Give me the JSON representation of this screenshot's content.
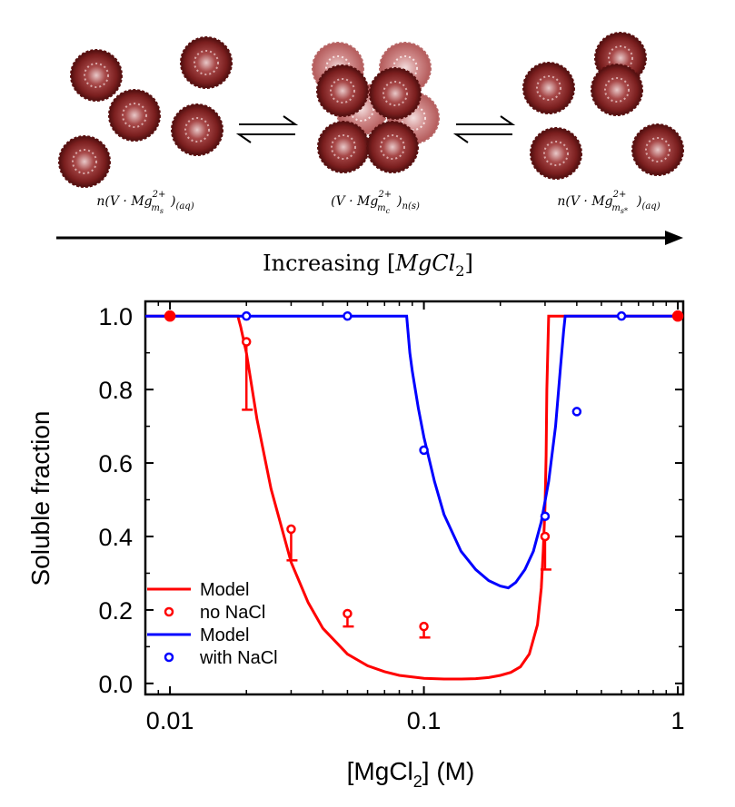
{
  "scheme": {
    "state_labels": {
      "left": {
        "main": "n(V · Mg",
        "sup": "2+",
        "sub": "m",
        "subsub": "s",
        "tail": ")",
        "phase": "(aq)"
      },
      "middle": {
        "main": "(V · Mg",
        "sup": "2+",
        "sub": "m",
        "subsub": "c",
        "tail": ")",
        "phase": "n(s)"
      },
      "right": {
        "main": "n(V · Mg",
        "sup": "2+",
        "sub": "m",
        "subsub": "s*",
        "tail": ")",
        "phase": "(aq)"
      }
    },
    "arrow_label": {
      "text": "Increasing ",
      "bracket_open": "[",
      "species": "MgCl",
      "sub": "2",
      "bracket_close": "]"
    },
    "colors": {
      "particle_dark": "#7a1e1e",
      "particle_light": "#c46a6a"
    }
  },
  "chart_data": {
    "type": "scatter",
    "xscale": "log",
    "xlim": [
      0.008,
      1.05
    ],
    "ylim": [
      -0.03,
      1.04
    ],
    "xticks": [
      0.01,
      0.1,
      1
    ],
    "xtick_labels": [
      "0.01",
      "0.1",
      "1"
    ],
    "yticks": [
      0,
      0.2,
      0.4,
      0.6,
      0.8,
      1.0
    ],
    "ytick_labels": [
      "0.0",
      "0.2",
      "0.4",
      "0.6",
      "0.8",
      "1.0"
    ],
    "xlabel": {
      "prefix": "[MgCl",
      "sub": "2",
      "suffix": "] (M)"
    },
    "ylabel": "Soluble fraction",
    "legend_position": "bottom-left",
    "series": [
      {
        "name": "Model",
        "kind": "line",
        "color": "#ff0000",
        "x": [
          0.008,
          0.0185,
          0.019,
          0.02,
          0.022,
          0.025,
          0.03,
          0.035,
          0.04,
          0.05,
          0.06,
          0.07,
          0.08,
          0.1,
          0.12,
          0.14,
          0.16,
          0.18,
          0.2,
          0.22,
          0.24,
          0.26,
          0.28,
          0.29,
          0.295,
          0.3,
          0.303,
          0.305,
          0.31,
          0.35,
          0.5,
          1.0
        ],
        "y": [
          1.0,
          1.0,
          0.97,
          0.9,
          0.72,
          0.53,
          0.33,
          0.22,
          0.15,
          0.08,
          0.048,
          0.032,
          0.022,
          0.014,
          0.012,
          0.012,
          0.013,
          0.016,
          0.022,
          0.03,
          0.045,
          0.08,
          0.16,
          0.26,
          0.36,
          0.48,
          0.62,
          0.8,
          1.0,
          1.0,
          1.0,
          1.0
        ]
      },
      {
        "name": "no NaCl",
        "kind": "points",
        "color": "#ff0000",
        "x": [
          0.01,
          0.02,
          0.03,
          0.05,
          0.1,
          0.3,
          1.0
        ],
        "y": [
          1.0,
          0.93,
          0.42,
          0.19,
          0.155,
          0.4,
          1.0
        ],
        "err_low": [
          0,
          0.185,
          0.085,
          0.035,
          0.03,
          0.09,
          0
        ],
        "filled": [
          true,
          false,
          false,
          false,
          false,
          false,
          true
        ]
      },
      {
        "name": "Model",
        "kind": "line",
        "color": "#0000ff",
        "x": [
          0.008,
          0.0855,
          0.088,
          0.09,
          0.095,
          0.1,
          0.11,
          0.12,
          0.14,
          0.16,
          0.18,
          0.2,
          0.215,
          0.23,
          0.25,
          0.27,
          0.29,
          0.31,
          0.33,
          0.345,
          0.355,
          0.36,
          0.5,
          1.0
        ],
        "y": [
          1.0,
          1.0,
          0.9,
          0.85,
          0.75,
          0.67,
          0.55,
          0.46,
          0.36,
          0.31,
          0.28,
          0.265,
          0.26,
          0.275,
          0.31,
          0.36,
          0.44,
          0.55,
          0.7,
          0.86,
          0.96,
          1.0,
          1.0,
          1.0
        ]
      },
      {
        "name": "with NaCl",
        "kind": "points",
        "color": "#0000ff",
        "x": [
          0.02,
          0.05,
          0.1,
          0.3,
          0.4,
          0.6
        ],
        "y": [
          1.0,
          1.0,
          0.635,
          0.455,
          0.74,
          1.0
        ],
        "filled": [
          false,
          false,
          false,
          false,
          false,
          false
        ]
      }
    ]
  }
}
